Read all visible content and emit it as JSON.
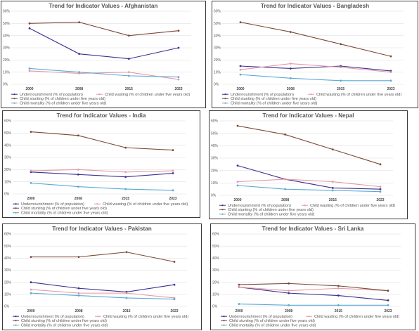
{
  "colors": {
    "undernourishment": "#3b2f8f",
    "child_wasting": "#e59aa6",
    "child_stunting": "#7b4a35",
    "child_mortality": "#5aa9d6"
  },
  "legend": {
    "undernourishment": "Undernourishment (% of population)",
    "child_wasting": "Child wasting (% of children under five years old)",
    "child_stunting": "Child stunting (% of children under five years old)",
    "child_mortality": "Child mortality (% of children under five years old)"
  },
  "chart_data": [
    {
      "type": "line",
      "title": "Trend for Indicator Values - Afghanistan",
      "x": [
        "2000",
        "2008",
        "2015",
        "2023"
      ],
      "y_ticks": [
        "0%",
        "10%",
        "20%",
        "30%",
        "40%",
        "50%",
        "60%"
      ],
      "ylim": [
        0,
        60
      ],
      "legend_position": "bottom",
      "series": [
        {
          "key": "undernourishment",
          "name": "Undernourishment (% of population)",
          "values": [
            46,
            25,
            21,
            30
          ]
        },
        {
          "key": "child_wasting",
          "name": "Child wasting (% of children under five years old)",
          "values": [
            11,
            9,
            10,
            4
          ]
        },
        {
          "key": "child_stunting",
          "name": "Child stunting (% of children under five years old)",
          "values": [
            50,
            51,
            40,
            44
          ]
        },
        {
          "key": "child_mortality",
          "name": "Child mortality (% of children under five years old)",
          "values": [
            13,
            10,
            7,
            6
          ]
        }
      ]
    },
    {
      "type": "line",
      "title": "Trend for Indicator Values - Bangladesh",
      "x": [
        "2000",
        "2008",
        "2015",
        "2023"
      ],
      "y_ticks": [
        "0%",
        "10%",
        "20%",
        "30%",
        "40%",
        "50%",
        "60%"
      ],
      "ylim": [
        0,
        60
      ],
      "legend_position": "bottom",
      "series": [
        {
          "key": "undernourishment",
          "name": "Undernourishment (% of population)",
          "values": [
            15,
            13,
            15,
            11
          ]
        },
        {
          "key": "child_wasting",
          "name": "Child wasting (% of children under five years old)",
          "values": [
            12,
            17,
            14,
            10
          ]
        },
        {
          "key": "child_stunting",
          "name": "Child stunting (% of children under five years old)",
          "values": [
            51,
            43,
            33,
            23
          ]
        },
        {
          "key": "child_mortality",
          "name": "Child mortality (% of children under five years old)",
          "values": [
            8,
            5,
            3,
            3
          ]
        }
      ]
    },
    {
      "type": "line",
      "title": "Trend for Indicator Values - India",
      "x": [
        "2000",
        "2008",
        "2015",
        "2023"
      ],
      "y_ticks": [
        "0%",
        "10%",
        "20%",
        "30%",
        "40%",
        "50%",
        "60%"
      ],
      "ylim": [
        0,
        60
      ],
      "legend_position": "bottom",
      "series": [
        {
          "key": "undernourishment",
          "name": "Undernourishment (% of population)",
          "values": [
            18,
            16,
            14,
            17
          ]
        },
        {
          "key": "child_wasting",
          "name": "Child wasting (% of children under five years old)",
          "values": [
            19,
            20,
            18,
            19
          ]
        },
        {
          "key": "child_stunting",
          "name": "Child stunting (% of children under five years old)",
          "values": [
            51,
            48,
            38,
            36
          ]
        },
        {
          "key": "child_mortality",
          "name": "Child mortality (% of children under five years old)",
          "values": [
            9,
            6,
            4,
            3
          ]
        }
      ]
    },
    {
      "type": "line",
      "title": "Trend for Indicator Values - Nepal",
      "x": [
        "2000",
        "2008",
        "2015",
        "2023"
      ],
      "y_ticks": [
        "0%",
        "10%",
        "20%",
        "30%",
        "40%",
        "50%",
        "60%"
      ],
      "ylim": [
        0,
        60
      ],
      "legend_position": "bottom",
      "series": [
        {
          "key": "undernourishment",
          "name": "Undernourishment (% of population)",
          "values": [
            24,
            13,
            6,
            5
          ]
        },
        {
          "key": "child_wasting",
          "name": "Child wasting (% of children under five years old)",
          "values": [
            11,
            13,
            11,
            7
          ]
        },
        {
          "key": "child_stunting",
          "name": "Child stunting (% of children under five years old)",
          "values": [
            56,
            49,
            37,
            25
          ]
        },
        {
          "key": "child_mortality",
          "name": "Child mortality (% of children under five years old)",
          "values": [
            8,
            5,
            4,
            3
          ]
        }
      ]
    },
    {
      "type": "line",
      "title": "Trend for Indicator Values - Pakistan",
      "x": [
        "2000",
        "2008",
        "2015",
        "2023"
      ],
      "y_ticks": [
        "0%",
        "10%",
        "20%",
        "30%",
        "40%",
        "50%",
        "60%"
      ],
      "ylim": [
        0,
        60
      ],
      "legend_position": "bottom",
      "series": [
        {
          "key": "undernourishment",
          "name": "Undernourishment (% of population)",
          "values": [
            20,
            15,
            12,
            18
          ]
        },
        {
          "key": "child_wasting",
          "name": "Child wasting (% of children under five years old)",
          "values": [
            14,
            11,
            11,
            7
          ]
        },
        {
          "key": "child_stunting",
          "name": "Child stunting (% of children under five years old)",
          "values": [
            41,
            41,
            45,
            37
          ]
        },
        {
          "key": "child_mortality",
          "name": "Child mortality (% of children under five years old)",
          "values": [
            11,
            9,
            7,
            6
          ]
        }
      ]
    },
    {
      "type": "line",
      "title": "Trend for Indicator Values - Sri Lanka",
      "x": [
        "2000",
        "2008",
        "2015",
        "2023"
      ],
      "y_ticks": [
        "0%",
        "10%",
        "20%",
        "30%",
        "40%",
        "50%",
        "60%"
      ],
      "ylim": [
        0,
        60
      ],
      "legend_position": "bottom",
      "series": [
        {
          "key": "undernourishment",
          "name": "Undernourishment (% of population)",
          "values": [
            16,
            11,
            9,
            5
          ]
        },
        {
          "key": "child_wasting",
          "name": "Child wasting (% of children under five years old)",
          "values": [
            16,
            13,
            15,
            13
          ]
        },
        {
          "key": "child_stunting",
          "name": "Child stunting (% of children under five years old)",
          "values": [
            18,
            19,
            17,
            13
          ]
        },
        {
          "key": "child_mortality",
          "name": "Child mortality (% of children under five years old)",
          "values": [
            2,
            1,
            1,
            1
          ]
        }
      ]
    }
  ]
}
